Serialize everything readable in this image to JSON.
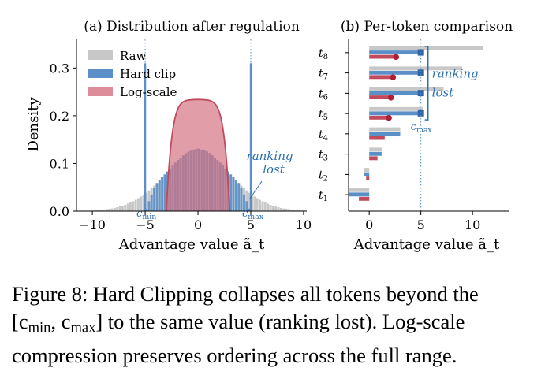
{
  "figure": {
    "caption_lines": [
      "Figure 8: Hard Clipping collapses all tokens beyond the",
      "[c_min, c_max] to the same value (ranking lost). Log-scale",
      "compression preserves ordering across the full range."
    ]
  },
  "colors": {
    "raw": "#c8c8c8",
    "hard_clip": "#5b8fc7",
    "log_scale": "#c14a5c",
    "log_scale_fill": "#d4707f",
    "annotation": "#2e6fad"
  },
  "chart_data": [
    {
      "type": "area",
      "title": "(a) Distribution after regulation",
      "xlabel": "Advantage value ã_t",
      "ylabel": "Density",
      "xlim": [
        -11.5,
        10.3
      ],
      "ylim": [
        0,
        0.36
      ],
      "xticks": [
        -10,
        -5,
        0,
        5,
        10
      ],
      "yticks": [
        0.0,
        0.1,
        0.2,
        0.3
      ],
      "grid": false,
      "legend_position": "top-left",
      "series": [
        {
          "name": "Raw",
          "kind": "histogram",
          "x": [
            -10,
            -9,
            -8,
            -7,
            -6,
            -5,
            -4,
            -3,
            -2,
            -1,
            0,
            1,
            2,
            3,
            4,
            5,
            6,
            7,
            8,
            9,
            10
          ],
          "y": [
            0.001,
            0.003,
            0.006,
            0.012,
            0.022,
            0.036,
            0.056,
            0.08,
            0.105,
            0.124,
            0.132,
            0.124,
            0.105,
            0.08,
            0.056,
            0.036,
            0.022,
            0.012,
            0.006,
            0.003,
            0.001
          ]
        },
        {
          "name": "Hard clip",
          "kind": "histogram",
          "x": [
            -5,
            -4,
            -3,
            -2,
            -1,
            0,
            1,
            2,
            3,
            4,
            5
          ],
          "y": [
            0.0,
            0.056,
            0.08,
            0.105,
            0.124,
            0.132,
            0.124,
            0.105,
            0.08,
            0.056,
            0.0
          ],
          "spikes": [
            {
              "x": -5,
              "y": 0.31
            },
            {
              "x": 5,
              "y": 0.31
            }
          ]
        },
        {
          "name": "Log-scale",
          "kind": "density",
          "x": [
            -3.0,
            -2.5,
            -2.0,
            -1.5,
            -1.0,
            -0.5,
            0,
            0.5,
            1.0,
            1.5,
            2.0,
            2.5,
            3.0
          ],
          "y": [
            0.0,
            0.03,
            0.12,
            0.2,
            0.228,
            0.232,
            0.234,
            0.232,
            0.228,
            0.2,
            0.12,
            0.03,
            0.0
          ]
        }
      ],
      "annotations": [
        {
          "text": "c_min",
          "x": -5.0
        },
        {
          "text": "c_max",
          "x": 5.0
        },
        {
          "text": "ranking",
          "x": 8.0,
          "y": 0.115
        },
        {
          "text": "lost",
          "x": 8.0,
          "y": 0.09
        }
      ]
    },
    {
      "type": "bar",
      "title": "(b) Per-token comparison",
      "xlabel": "Advantage value ã_t",
      "xlim": [
        -2.0,
        13.5
      ],
      "xticks": [
        0,
        5,
        10
      ],
      "grid": false,
      "categories": [
        "t1",
        "t2",
        "t3",
        "t4",
        "t5",
        "t6",
        "t7",
        "t8"
      ],
      "series": [
        {
          "name": "Raw",
          "values": [
            -2.0,
            -0.5,
            1.2,
            3.0,
            5.2,
            7.2,
            9.0,
            11.0
          ]
        },
        {
          "name": "Hard clip",
          "values": [
            -2.0,
            -0.5,
            1.2,
            3.0,
            5.0,
            5.0,
            5.0,
            5.0
          ]
        },
        {
          "name": "Log-scale",
          "values": [
            -1.0,
            -0.3,
            0.8,
            1.5,
            1.9,
            2.1,
            2.3,
            2.6
          ]
        }
      ],
      "annotations": [
        {
          "text": "ranking",
          "x": 8.2
        },
        {
          "text": "lost",
          "x": 8.2
        },
        {
          "text": "c_max",
          "x": 5.0
        }
      ]
    }
  ]
}
